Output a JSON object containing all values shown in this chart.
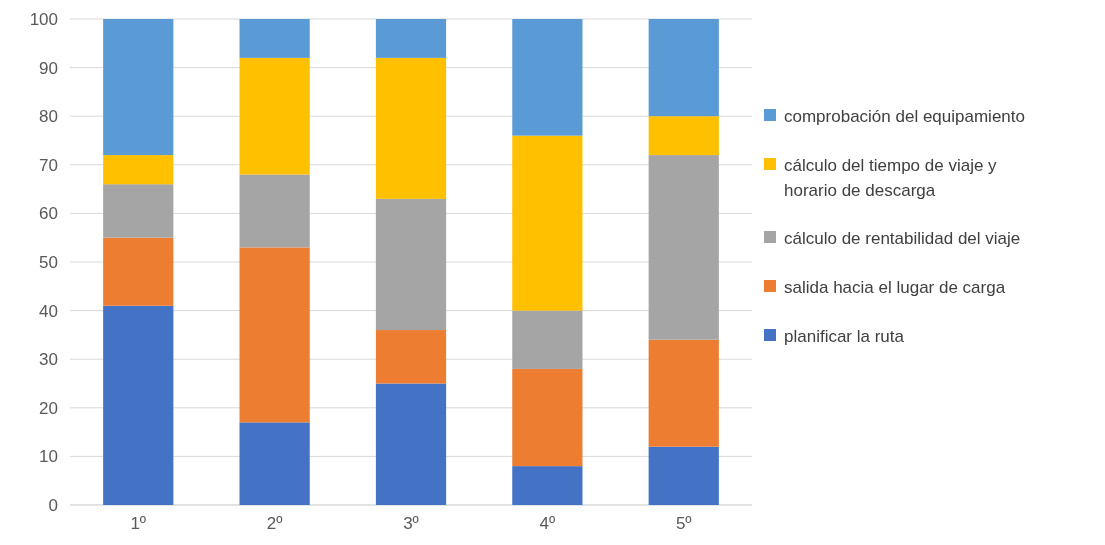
{
  "chart_data": {
    "type": "bar",
    "stacked": true,
    "categories": [
      "1º",
      "2º",
      "3º",
      "4º",
      "5º"
    ],
    "series": [
      {
        "name": "planificar la ruta",
        "color": "#4472c4",
        "values": [
          41,
          17,
          25,
          8,
          12
        ]
      },
      {
        "name": "salida hacia el lugar de carga",
        "color": "#ed7d31",
        "values": [
          14,
          36,
          11,
          20,
          22
        ]
      },
      {
        "name": "cálculo de rentabilidad del viaje",
        "color": "#a5a5a5",
        "values": [
          11,
          15,
          27,
          12,
          38
        ]
      },
      {
        "name": "cálculo del tiempo de viaje y horario de descarga",
        "color": "#ffc000",
        "values": [
          6,
          24,
          29,
          36,
          8
        ]
      },
      {
        "name": "comprobación del equipamiento",
        "color": "#5b9bd5",
        "values": [
          28,
          8,
          8,
          24,
          20
        ]
      }
    ],
    "ylim": [
      0,
      100
    ],
    "yticks": [
      0,
      10,
      20,
      30,
      40,
      50,
      60,
      70,
      80,
      90,
      100
    ],
    "grid": "y",
    "legend": "right"
  }
}
